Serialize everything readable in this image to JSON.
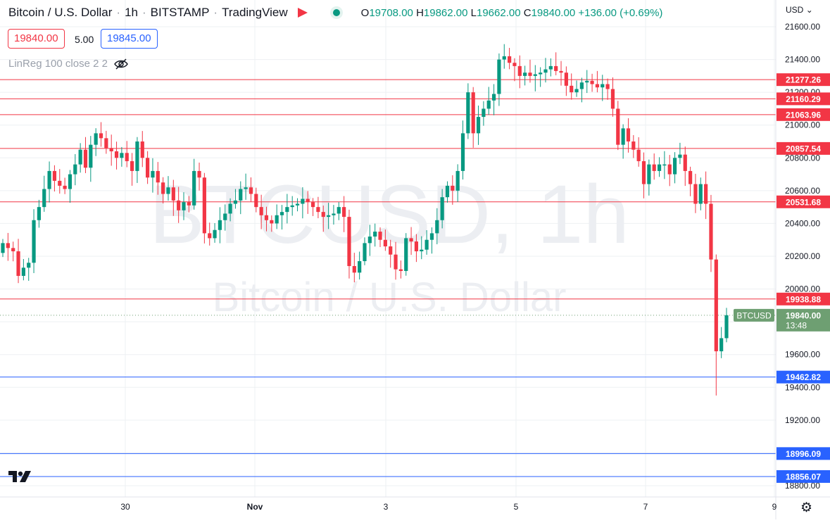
{
  "header": {
    "symbol": "Bitcoin / U.S. Dollar",
    "interval": "1h",
    "exchange": "BITSTAMP",
    "source": "TradingView",
    "ohlc": {
      "o_label": "O",
      "o": "19708.00",
      "h_label": "H",
      "h": "19862.00",
      "l_label": "L",
      "l": "19662.00",
      "c_label": "C",
      "c": "19840.00",
      "change": "+136.00 (+0.69%)"
    },
    "bid": "19840.00",
    "spread": "5.00",
    "ask": "19845.00",
    "indicator": "LinReg 100 close 2 2",
    "currency": "USD"
  },
  "watermark": {
    "symbol": "BTCUSD, 1h",
    "name": "Bitcoin / U.S. Dollar"
  },
  "colors": {
    "up": "#089981",
    "down": "#f23645",
    "resistance": "#f23645",
    "support": "#2962ff",
    "last_price": "#6e9f72",
    "grid": "#eef0f3",
    "axis_text": "#131722"
  },
  "icons": {
    "flag": "flag-icon",
    "visibility": "eye-off-icon",
    "settings": "gear-icon",
    "logo": "tradingview-logo"
  },
  "chart_data": {
    "type": "candlestick",
    "ylim": [
      18800,
      21650
    ],
    "y_ticks": [
      "21600.00",
      "21400.00",
      "21200.00",
      "21000.00",
      "20800.00",
      "20600.00",
      "20400.00",
      "20200.00",
      "20000.00",
      "19800.00",
      "19600.00",
      "19400.00",
      "19200.00",
      "19000.00",
      "18800.00"
    ],
    "x_ticks": [
      "30",
      "Nov",
      "3",
      "5",
      "7",
      "9"
    ],
    "resistance_lines": [
      {
        "value": 21277.26,
        "label": "21277.26"
      },
      {
        "value": 21160.29,
        "label": "21160.29"
      },
      {
        "value": 21063.96,
        "label": "21063.96"
      },
      {
        "value": 20857.54,
        "label": "20857.54"
      },
      {
        "value": 20531.68,
        "label": "20531.68"
      },
      {
        "value": 19938.88,
        "label": "19938.88"
      }
    ],
    "support_lines": [
      {
        "value": 19462.82,
        "label": "19462.82"
      },
      {
        "value": 18996.09,
        "label": "18996.09"
      },
      {
        "value": 18856.07,
        "label": "18856.07"
      }
    ],
    "last_price": {
      "value": 19840.0,
      "symbol": "BTCUSD",
      "label": "19840.00",
      "countdown": "13:48"
    },
    "closes": [
      20280,
      20250,
      20230,
      20080,
      20130,
      20160,
      20420,
      20500,
      20610,
      20720,
      20660,
      20630,
      20610,
      20700,
      20760,
      20850,
      20740,
      20880,
      20950,
      20920,
      20860,
      20840,
      20800,
      20830,
      20780,
      20720,
      20900,
      20800,
      20680,
      20720,
      20650,
      20580,
      20620,
      20540,
      20480,
      20530,
      20510,
      20720,
      20680,
      20340,
      20310,
      20360,
      20420,
      20460,
      20520,
      20540,
      20610,
      20620,
      20580,
      20500,
      20450,
      20420,
      20400,
      20450,
      20470,
      20500,
      20510,
      20520,
      20550,
      20530,
      20500,
      20470,
      20440,
      20450,
      20460,
      20500,
      20440,
      20140,
      20100,
      20170,
      20280,
      20320,
      20350,
      20300,
      20260,
      20210,
      20120,
      20110,
      20310,
      20290,
      20230,
      20240,
      20300,
      20340,
      20420,
      20560,
      20630,
      20600,
      20720,
      20950,
      21200,
      20950,
      21050,
      21100,
      21150,
      21190,
      21400,
      21420,
      21380,
      21360,
      21300,
      21320,
      21300,
      21310,
      21320,
      21340,
      21360,
      21330,
      21320,
      21240,
      21200,
      21220,
      21260,
      21270,
      21250,
      21230,
      21250,
      21220,
      21100,
      20880,
      20980,
      20900,
      20850,
      20780,
      20640,
      20760,
      20720,
      20760,
      20760,
      20700,
      20800,
      20820,
      20720,
      20640,
      20520,
      20640,
      20520,
      20180,
      19620,
      19700,
      19840
    ]
  }
}
